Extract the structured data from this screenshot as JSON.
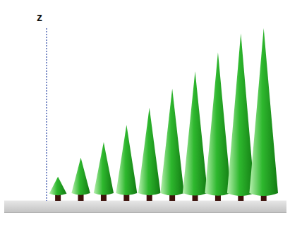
{
  "chart_data": {
    "type": "bar",
    "y_label": "z",
    "categories": [
      null,
      null,
      null,
      null,
      null,
      null,
      null,
      null,
      null,
      null
    ],
    "values": [
      1.4,
      2.5,
      3.4,
      4.4,
      5.4,
      6.5,
      7.5,
      8.6,
      9.7,
      10
    ],
    "color": "#2eb82e",
    "ylim": [
      0,
      10
    ],
    "tick_labels": false,
    "grid": false,
    "marker": "cone"
  }
}
